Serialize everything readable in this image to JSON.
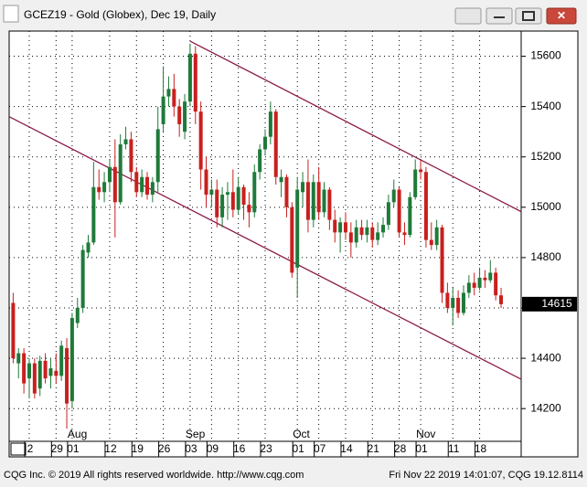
{
  "chart_data": {
    "type": "candlestick",
    "title": "GCEZ19 - Gold (Globex), Dec 19, Daily",
    "categories": [
      null,
      null,
      null,
      "2",
      null,
      null,
      null,
      null,
      "29",
      null,
      null,
      "01",
      null,
      null,
      null,
      null,
      null,
      null,
      "12",
      null,
      null,
      null,
      null,
      "19",
      null,
      null,
      null,
      null,
      "26",
      null,
      null,
      null,
      null,
      "03",
      null,
      null,
      null,
      "09",
      null,
      null,
      null,
      null,
      "16",
      null,
      null,
      null,
      null,
      "23",
      null,
      null,
      null,
      null,
      null,
      "01",
      null,
      null,
      null,
      "07",
      null,
      null,
      null,
      null,
      "14",
      null,
      null,
      null,
      null,
      "21",
      null,
      null,
      null,
      null,
      "28",
      null,
      null,
      null,
      "01",
      null,
      null,
      null,
      null,
      null,
      "11",
      null,
      null,
      null,
      null,
      "18",
      null,
      null,
      null,
      null
    ],
    "month_labels": [
      {
        "label": "Aug",
        "index": 11
      },
      {
        "label": "Sep",
        "index": 33
      },
      {
        "label": "Oct",
        "index": 53
      },
      {
        "label": "Nov",
        "index": 76
      }
    ],
    "open": [
      14620,
      14380,
      14420,
      14320,
      14380,
      14280,
      14390,
      14330,
      14350,
      14330,
      14440,
      14230,
      14540,
      14600,
      14820,
      14860,
      15080,
      15060,
      15100,
      15160,
      15020,
      15250,
      15270,
      15140,
      15060,
      15120,
      15050,
      15100,
      15330,
      15440,
      15470,
      15400,
      15300,
      15420,
      15610,
      15380,
      15150,
      15050,
      15070,
      14960,
      15050,
      15060,
      14990,
      15080,
      15010,
      14980,
      15140,
      15230,
      15280,
      15380,
      15100,
      15120,
      15000,
      14760,
      15060,
      15100,
      14950,
      15100,
      14980,
      15070,
      14950,
      14900,
      14940,
      14900,
      14860,
      14920,
      14890,
      14920,
      14870,
      14900,
      14930,
      15020,
      15070,
      14900,
      14890,
      15040,
      15150,
      15140,
      14870,
      14850,
      14920,
      14660,
      14600,
      14640,
      14580,
      14660,
      14700,
      14680,
      14720,
      14710,
      14740,
      14650
    ],
    "high": [
      14660,
      14440,
      14440,
      14400,
      14400,
      14410,
      14420,
      14400,
      14420,
      14470,
      14480,
      14580,
      14640,
      14850,
      14890,
      15180,
      15150,
      15140,
      15190,
      15270,
      15290,
      15320,
      15300,
      15160,
      15150,
      15140,
      15120,
      15400,
      15560,
      15520,
      15530,
      15430,
      15450,
      15650,
      15640,
      15420,
      15200,
      15110,
      15110,
      15080,
      15100,
      15150,
      15120,
      15090,
      15060,
      15170,
      15250,
      15310,
      15420,
      15390,
      15150,
      15130,
      15020,
      15120,
      15140,
      15190,
      15130,
      15160,
      15100,
      15080,
      14990,
      14960,
      14980,
      14940,
      14950,
      14950,
      14950,
      14940,
      14940,
      14960,
      15050,
      15110,
      15080,
      14940,
      15060,
      15190,
      15190,
      15160,
      14940,
      14950,
      14930,
      14700,
      14680,
      14670,
      14690,
      14730,
      14740,
      14760,
      14750,
      14790,
      14760,
      14680
    ],
    "low": [
      14380,
      14320,
      14260,
      14240,
      14240,
      14250,
      14300,
      14280,
      14300,
      14310,
      14120,
      14200,
      14520,
      14580,
      14800,
      14850,
      15030,
      15020,
      15060,
      14880,
      15010,
      15230,
      15100,
      15040,
      15040,
      15030,
      15020,
      15060,
      15300,
      15400,
      15360,
      15280,
      15270,
      15400,
      15330,
      15070,
      15000,
      15000,
      14920,
      14920,
      14950,
      14960,
      14970,
      14950,
      14920,
      14960,
      15110,
      15210,
      15250,
      15090,
      15040,
      14960,
      14720,
      14640,
      15000,
      14900,
      14920,
      14950,
      14960,
      14910,
      14860,
      14820,
      14870,
      14800,
      14840,
      14870,
      14860,
      14840,
      14850,
      14880,
      14910,
      15000,
      14880,
      14850,
      14880,
      15030,
      15110,
      14840,
      14830,
      14830,
      14620,
      14580,
      14530,
      14560,
      14570,
      14640,
      14650,
      14670,
      14680,
      14700,
      14630,
      14600
    ],
    "close": [
      14400,
      14420,
      14300,
      14380,
      14260,
      14390,
      14320,
      14360,
      14330,
      14450,
      14220,
      14560,
      14600,
      14830,
      14860,
      15080,
      15060,
      15100,
      15160,
      15020,
      15250,
      15270,
      15140,
      15060,
      15120,
      15050,
      15100,
      15310,
      15440,
      15470,
      15400,
      15330,
      15420,
      15610,
      15380,
      15150,
      15050,
      15070,
      14960,
      15050,
      15060,
      14990,
      15080,
      15010,
      14980,
      15140,
      15230,
      15280,
      15380,
      15120,
      15120,
      15000,
      14740,
      15070,
      15100,
      14950,
      15100,
      14980,
      15070,
      14950,
      14900,
      14940,
      14900,
      14860,
      14920,
      14890,
      14920,
      14870,
      14900,
      14930,
      15020,
      15070,
      14900,
      14890,
      15040,
      15150,
      15140,
      14870,
      14850,
      14920,
      14660,
      14600,
      14640,
      14580,
      14660,
      14700,
      14680,
      14720,
      14710,
      14740,
      14650,
      14615
    ],
    "up_color": "#1f7a3a",
    "down_color": "#c8201e",
    "ylim": [
      14070,
      15700
    ],
    "yticks": [
      14200,
      14400,
      14600,
      14800,
      15000,
      15200,
      15400,
      15600
    ],
    "grid": true,
    "trendlines": [
      {
        "from_index": 33,
        "from_value": 15660,
        "to_index": 94.8,
        "to_value": 14982,
        "color": "#8b1a4a"
      },
      {
        "from_index": -0.75,
        "from_value": 15360,
        "to_index": 94.8,
        "to_value": 14316,
        "color": "#8b1a4a"
      }
    ],
    "last_price": 14615
  },
  "footer": {
    "left": "CQG Inc. © 2019 All rights reserved worldwide. http://www.cqg.com",
    "right": "Fri Nov 22 2019 14:01:07, CQG 19.12.8114"
  }
}
